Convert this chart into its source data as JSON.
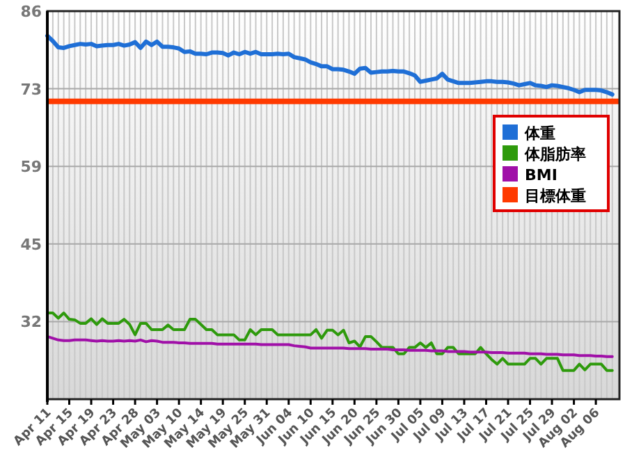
{
  "chart_data": {
    "type": "line",
    "categories": [
      "Apr 11",
      null,
      null,
      null,
      "Apr 15",
      null,
      null,
      null,
      "Apr 19",
      null,
      null,
      null,
      "Apr 23",
      null,
      null,
      null,
      "Apr 28",
      null,
      null,
      null,
      "May 03",
      null,
      null,
      null,
      "May 10",
      null,
      null,
      null,
      "May 14",
      null,
      null,
      null,
      "May 19",
      null,
      null,
      null,
      "May 25",
      null,
      null,
      null,
      "May 31",
      null,
      null,
      null,
      "Jun 04",
      null,
      null,
      null,
      "Jun 10",
      null,
      null,
      null,
      "Jun 15",
      null,
      null,
      null,
      "Jun 20",
      null,
      null,
      null,
      "Jun 25",
      null,
      null,
      null,
      "Jun 30",
      null,
      null,
      null,
      "Jul 05",
      null,
      null,
      null,
      "Jul 09",
      null,
      null,
      null,
      "Jul 13",
      null,
      null,
      null,
      "Jul 17",
      null,
      null,
      null,
      "Jul 21",
      null,
      null,
      null,
      "Jul 25",
      null,
      null,
      null,
      "Jul 29",
      null,
      null,
      null,
      "Aug 02",
      null,
      null,
      null,
      "Aug 06",
      null,
      null,
      null
    ],
    "series": [
      {
        "name": "体重",
        "color": "#1f6fd6",
        "values": [
          81.7,
          80.8,
          79.7,
          79.6,
          79.9,
          80.1,
          80.3,
          80.2,
          80.3,
          79.9,
          80.0,
          80.1,
          80.1,
          80.3,
          80.0,
          80.2,
          80.6,
          79.6,
          80.7,
          80.1,
          80.7,
          79.8,
          79.8,
          79.7,
          79.5,
          78.9,
          79.0,
          78.6,
          78.6,
          78.5,
          78.8,
          78.8,
          78.7,
          78.3,
          78.8,
          78.5,
          78.9,
          78.6,
          78.9,
          78.5,
          78.5,
          78.5,
          78.6,
          78.5,
          78.6,
          78.0,
          77.8,
          77.6,
          77.1,
          76.8,
          76.4,
          76.4,
          75.9,
          75.9,
          75.8,
          75.5,
          75.1,
          76.0,
          76.1,
          75.3,
          75.4,
          75.5,
          75.5,
          75.6,
          75.5,
          75.5,
          75.2,
          74.8,
          73.7,
          73.9,
          74.1,
          74.3,
          75.1,
          74.1,
          73.8,
          73.5,
          73.5,
          73.5,
          73.6,
          73.7,
          73.8,
          73.8,
          73.7,
          73.7,
          73.6,
          73.4,
          73.1,
          73.3,
          73.5,
          73.1,
          73.0,
          72.8,
          73.1,
          73.0,
          72.8,
          72.6,
          72.3,
          71.9,
          72.3,
          72.3,
          72.3,
          72.2,
          71.9,
          71.5
        ]
      },
      {
        "name": "体脂肪率",
        "color": "#2e9a0c",
        "values": [
          33.5,
          33.5,
          32.6,
          33.5,
          32.4,
          32.3,
          31.7,
          31.7,
          32.5,
          31.5,
          32.5,
          31.7,
          31.7,
          31.7,
          32.4,
          31.5,
          29.7,
          31.7,
          31.7,
          30.6,
          30.6,
          30.6,
          31.4,
          30.6,
          30.6,
          30.6,
          32.4,
          32.4,
          31.5,
          30.6,
          30.6,
          29.7,
          29.7,
          29.7,
          29.7,
          28.8,
          28.8,
          30.6,
          29.7,
          30.6,
          30.6,
          30.6,
          29.7,
          29.7,
          29.7,
          29.7,
          29.7,
          29.7,
          29.7,
          30.6,
          29.1,
          30.5,
          30.5,
          29.7,
          30.5,
          28.3,
          28.6,
          27.6,
          29.4,
          29.4,
          28.5,
          27.5,
          27.5,
          27.5,
          26.4,
          26.4,
          27.5,
          27.5,
          28.3,
          27.5,
          28.3,
          26.4,
          26.4,
          27.5,
          27.5,
          26.4,
          26.4,
          26.4,
          26.4,
          27.5,
          26.4,
          25.4,
          24.6,
          25.6,
          24.6,
          24.6,
          24.6,
          24.6,
          25.6,
          25.6,
          24.6,
          25.6,
          25.6,
          25.6,
          23.5,
          23.5,
          23.5,
          24.6,
          23.6,
          24.6,
          24.6,
          24.6,
          23.5,
          23.5
        ]
      },
      {
        "name": "BMI",
        "color": "#a010a8",
        "values": [
          29.4,
          29.1,
          28.8,
          28.7,
          28.7,
          28.8,
          28.8,
          28.8,
          28.7,
          28.6,
          28.7,
          28.6,
          28.6,
          28.7,
          28.6,
          28.7,
          28.6,
          28.8,
          28.5,
          28.7,
          28.6,
          28.4,
          28.4,
          28.4,
          28.3,
          28.3,
          28.2,
          28.2,
          28.2,
          28.2,
          28.2,
          28.1,
          28.1,
          28.1,
          28.1,
          28.1,
          28.1,
          28.1,
          28.1,
          28.0,
          28.0,
          28.0,
          28.0,
          28.0,
          28.0,
          27.8,
          27.7,
          27.6,
          27.4,
          27.4,
          27.4,
          27.4,
          27.4,
          27.4,
          27.4,
          27.3,
          27.3,
          27.3,
          27.3,
          27.2,
          27.2,
          27.2,
          27.2,
          27.1,
          27.1,
          27.1,
          27.0,
          27.0,
          27.0,
          27.0,
          26.9,
          26.9,
          26.9,
          26.8,
          26.8,
          26.8,
          26.8,
          26.7,
          26.7,
          26.7,
          26.7,
          26.6,
          26.6,
          26.6,
          26.5,
          26.5,
          26.5,
          26.5,
          26.4,
          26.4,
          26.4,
          26.3,
          26.3,
          26.3,
          26.2,
          26.2,
          26.2,
          26.1,
          26.1,
          26.1,
          26.0,
          26.0,
          25.9,
          25.9
        ]
      }
    ],
    "ref_lines": [
      {
        "axis": "y",
        "value": 70.3,
        "label": "目標体重",
        "color": "#ff3a00"
      }
    ],
    "ylim": [
      18.5,
      86
    ],
    "yticks": [
      {
        "value": 32,
        "label": "32"
      },
      {
        "value": 45.5,
        "label": "45"
      },
      {
        "value": 59,
        "label": "59"
      },
      {
        "value": 72.5,
        "label": "73"
      },
      {
        "value": 86,
        "label": "86"
      }
    ],
    "grid": true,
    "legend": "right",
    "marker": "none",
    "line_style": "solid"
  }
}
